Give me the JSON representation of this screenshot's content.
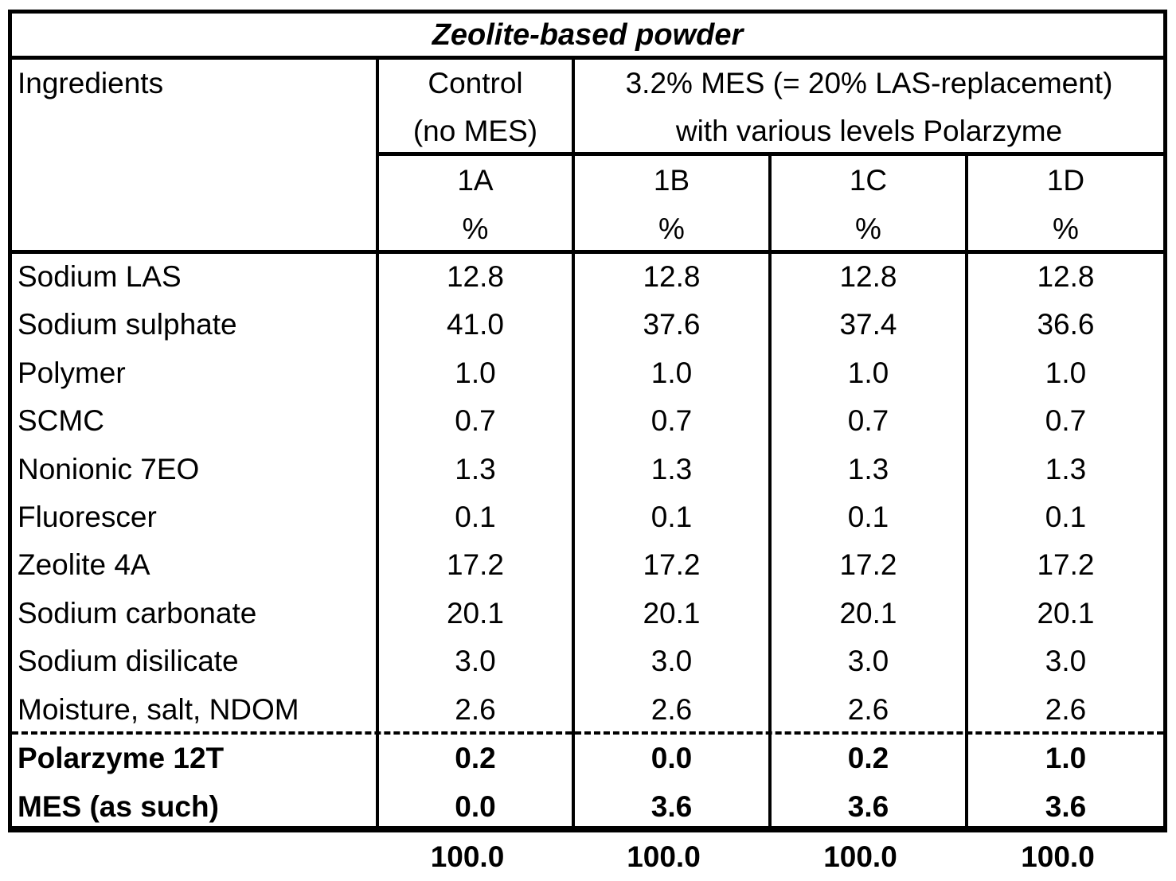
{
  "table": {
    "title": "Zeolite-based powder",
    "header": {
      "ingredients_label": "Ingredients",
      "control_line1": "Control",
      "control_line2": "(no MES)",
      "mes_group_line1": "3.2% MES (= 20% LAS-replacement)",
      "mes_group_line2": "with various levels Polarzyme",
      "columns": [
        {
          "id": "1A",
          "unit": "%"
        },
        {
          "id": "1B",
          "unit": "%"
        },
        {
          "id": "1C",
          "unit": "%"
        },
        {
          "id": "1D",
          "unit": "%"
        }
      ]
    },
    "rows": [
      {
        "name": "Sodium LAS",
        "values": [
          "12.8",
          "12.8",
          "12.8",
          "12.8"
        ]
      },
      {
        "name": "Sodium sulphate",
        "values": [
          "41.0",
          "37.6",
          "37.4",
          "36.6"
        ]
      },
      {
        "name": "Polymer",
        "values": [
          "1.0",
          "1.0",
          "1.0",
          "1.0"
        ]
      },
      {
        "name": "SCMC",
        "values": [
          "0.7",
          "0.7",
          "0.7",
          "0.7"
        ]
      },
      {
        "name": "Nonionic 7EO",
        "values": [
          "1.3",
          "1.3",
          "1.3",
          "1.3"
        ]
      },
      {
        "name": "Fluorescer",
        "values": [
          "0.1",
          "0.1",
          "0.1",
          "0.1"
        ]
      },
      {
        "name": "Zeolite 4A",
        "values": [
          "17.2",
          "17.2",
          "17.2",
          "17.2"
        ]
      },
      {
        "name": "Sodium carbonate",
        "values": [
          "20.1",
          "20.1",
          "20.1",
          "20.1"
        ]
      },
      {
        "name": "Sodium disilicate",
        "values": [
          "3.0",
          "3.0",
          "3.0",
          "3.0"
        ]
      },
      {
        "name": "Moisture, salt, NDOM",
        "values": [
          "2.6",
          "2.6",
          "2.6",
          "2.6"
        ]
      }
    ],
    "bold_rows": [
      {
        "name": "Polarzyme 12T",
        "values": [
          "0.2",
          "0.0",
          "0.2",
          "1.0"
        ]
      },
      {
        "name": "MES (as such)",
        "values": [
          "0.0",
          "3.6",
          "3.6",
          "3.6"
        ]
      }
    ],
    "totals": [
      "100.0",
      "100.0",
      "100.0",
      "100.0"
    ]
  }
}
